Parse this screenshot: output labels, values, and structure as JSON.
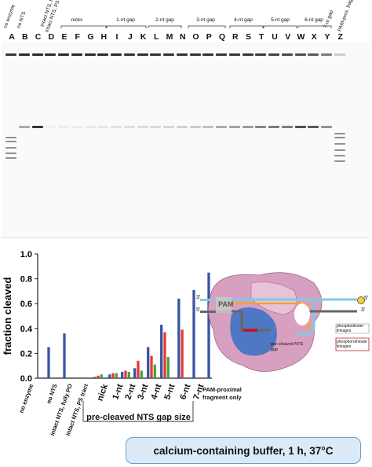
{
  "gel": {
    "header_labels": [
      "no enzyme",
      "no NTS",
      "intact NTS, fully PO",
      "intact NTS, PS tract"
    ],
    "right_labels": [
      "7-nt gap",
      "PAM-prox. frag. only"
    ],
    "group_labels": [
      "nicks",
      "1-nt gap",
      "2-nt gap",
      "3-nt gap",
      "4-nt gap",
      "5-nt gap",
      "6-nt gap"
    ],
    "lanes": [
      "A",
      "B",
      "C",
      "D",
      "E",
      "F",
      "G",
      "H",
      "I",
      "J",
      "K",
      "L",
      "M",
      "N",
      "O",
      "P",
      "Q",
      "R",
      "S",
      "T",
      "U",
      "V",
      "W",
      "X",
      "Y",
      "Z"
    ]
  },
  "chart_data": {
    "type": "bar",
    "ylabel": "fraction cleaved",
    "ylim": [
      0,
      1.0
    ],
    "yticks": [
      "0.0",
      "0.2",
      "0.4",
      "0.6",
      "0.8",
      "1.0"
    ],
    "conditions": [
      {
        "label": "no enzyme",
        "values": [
          0
        ]
      },
      {
        "label": "no NTS",
        "values": [
          0.25
        ]
      },
      {
        "label": "intact NTS, fully PO",
        "values": [
          0.36
        ]
      },
      {
        "label": "intact NTS, PS tract",
        "values": [
          0
        ]
      },
      {
        "label": "nick",
        "values": [
          0.01,
          0.02,
          0.03
        ]
      },
      {
        "label": "1-nt",
        "values": [
          0.03,
          0.04,
          0.04
        ]
      },
      {
        "label": "2-nt",
        "values": [
          0.05,
          0.06,
          0.05
        ]
      },
      {
        "label": "3-nt",
        "values": [
          0.08,
          0.14,
          0.06
        ]
      },
      {
        "label": "4-nt",
        "values": [
          0.25,
          0.18,
          0.11
        ]
      },
      {
        "label": "5-nt",
        "values": [
          0.43,
          0.37,
          0.17
        ]
      },
      {
        "label": "6-nt",
        "values": [
          0.64,
          0.39
        ]
      },
      {
        "label": "7-nt",
        "values": [
          0.71
        ]
      },
      {
        "label": "PAM-proximal fragment only",
        "values": [
          0.85
        ]
      }
    ],
    "gap_caption": "pre-cleaved NTS gap size",
    "colors": [
      "#3953a4",
      "#e53a35",
      "#48a23f"
    ]
  },
  "diagram": {
    "pam": "PAM",
    "end3_left": "3'",
    "end5_left": "5'",
    "end5_right": "5'",
    "end3_right": "3'",
    "pre_cleaved": "pre-cleaved NTS gap",
    "phosphodiester": "phosphodiester linkages",
    "phosphorothioate": "phosphorothioate linkages"
  },
  "buffer": {
    "label": "calcium-containing buffer, 1 h, 37°C"
  }
}
